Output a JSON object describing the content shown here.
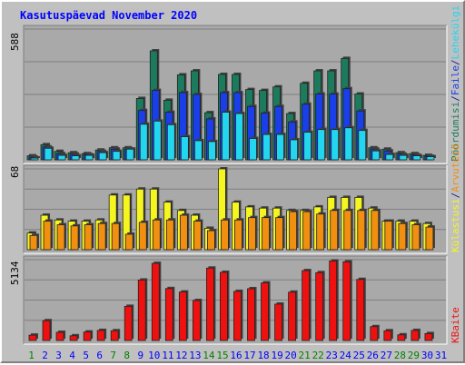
{
  "title": "Kasutuspäevad November 2020",
  "colors": {
    "title": "#0000ff",
    "background": "#c0c0c0",
    "plot_bg": "#a9a9a9",
    "grid": "#808080",
    "weekday_label": "#0000ff",
    "weekend_label": "#008000",
    "pages": "#1b7b5c",
    "files": "#1a3ee8",
    "hits": "#22d6f0",
    "visits": "#f5f520",
    "hosts": "#f08f10",
    "kbytes": "#ef1010"
  },
  "side_labels": {
    "top": [
      {
        "text": "Pöördumisi",
        "color": "#1b7b5c"
      },
      {
        "text": "/",
        "color": "#1f1f9a"
      },
      {
        "text": "Faile",
        "color": "#1a3ee8"
      },
      {
        "text": "/",
        "color": "#1f1f9a"
      },
      {
        "text": "Lehekülgi",
        "color": "#22d6f0"
      }
    ],
    "middle": [
      {
        "text": "Külastusi",
        "color": "#f5f520"
      },
      {
        "text": "/",
        "color": "#1f1f9a"
      },
      {
        "text": "Arvuteid",
        "color": "#f08f10"
      }
    ],
    "bottom": [
      {
        "text": "KBaite",
        "color": "#ef1010"
      }
    ]
  },
  "chart_data": {
    "type": "bar",
    "categories": [
      "1",
      "2",
      "3",
      "4",
      "5",
      "6",
      "7",
      "8",
      "9",
      "10",
      "11",
      "12",
      "13",
      "14",
      "15",
      "16",
      "17",
      "18",
      "19",
      "20",
      "21",
      "22",
      "23",
      "24",
      "25",
      "26",
      "27",
      "28",
      "29",
      "30",
      "31"
    ],
    "weekend_days": [
      "1",
      "7",
      "8",
      "14",
      "15",
      "21",
      "22",
      "28",
      "29"
    ],
    "panels": [
      {
        "id": "top",
        "ymax_label": "588",
        "ylim": [
          0,
          588
        ],
        "series": [
          {
            "name": "Pöördumisi",
            "values": [
              18,
              68,
              38,
              32,
              28,
              44,
              54,
              54,
              276,
              490,
              268,
              382,
              400,
              212,
              384,
              384,
              316,
              312,
              328,
              208,
              344,
              400,
              400,
              456,
              296,
              54,
              48,
              32,
              28,
              20,
              0
            ]
          },
          {
            "name": "Faile",
            "values": [
              12,
              58,
              28,
              26,
              24,
              38,
              48,
              48,
              222,
              312,
              214,
              302,
              294,
              184,
              302,
              302,
              240,
              210,
              240,
              170,
              250,
              296,
              296,
              320,
              220,
              48,
              40,
              26,
              22,
              16,
              0
            ]
          },
          {
            "name": "Lehekülgi",
            "values": [
              8,
              52,
              20,
              18,
              20,
              32,
              38,
              48,
              160,
              174,
              158,
              104,
              86,
              82,
              214,
              208,
              96,
              114,
              114,
              90,
              124,
              136,
              136,
              144,
              132,
              40,
              24,
              20,
              18,
              14,
              0
            ]
          }
        ]
      },
      {
        "id": "middle",
        "ymax_label": "68",
        "ylim": [
          0,
          68
        ],
        "series": [
          {
            "name": "Külastusi",
            "values": [
              14,
              29,
              25,
              24,
              24,
              25,
              46,
              46,
              51,
              51,
              40,
              33,
              29,
              18,
              68,
              40,
              36,
              35,
              35,
              33,
              33,
              36,
              44,
              44,
              44,
              35,
              24,
              24,
              24,
              22,
              0
            ]
          },
          {
            "name": "Arvuteid",
            "values": [
              12,
              24,
              21,
              20,
              21,
              22,
              22,
              13,
              23,
              25,
              25,
              29,
              24,
              16,
              25,
              25,
              27,
              27,
              27,
              32,
              32,
              30,
              33,
              33,
              33,
              33,
              24,
              22,
              21,
              19,
              0
            ]
          }
        ]
      },
      {
        "id": "bottom",
        "ymax_label": "5134",
        "ylim": [
          0,
          5134
        ],
        "series": [
          {
            "name": "KBaite",
            "values": [
              340,
              1260,
              520,
              300,
              540,
              640,
              620,
              2170,
              3840,
              4900,
              3300,
              3080,
              2540,
              4600,
              4330,
              3120,
              3290,
              3660,
              2310,
              3070,
              4440,
              4310,
              5050,
              5000,
              3880,
              880,
              620,
              360,
              640,
              440,
              0
            ]
          }
        ]
      }
    ]
  }
}
